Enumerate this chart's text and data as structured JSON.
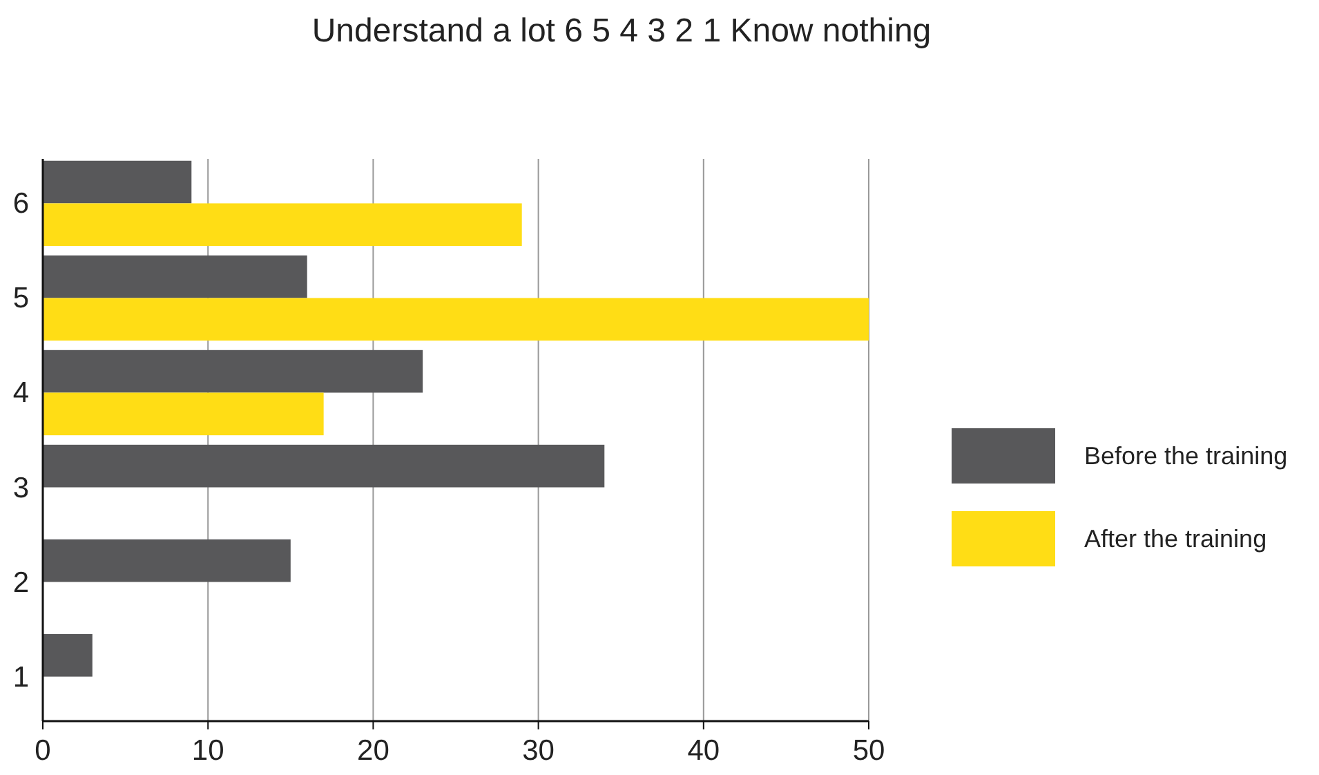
{
  "chart_data": {
    "type": "bar",
    "orientation": "horizontal",
    "title": "Understand a lot    6  5  4  3  2  1    Know nothing",
    "categories": [
      "6",
      "5",
      "4",
      "3",
      "2",
      "1"
    ],
    "series": [
      {
        "name": "Before the training",
        "color": "#58585a",
        "values": [
          9,
          16,
          23,
          34,
          15,
          3
        ]
      },
      {
        "name": "After the training",
        "color": "#ffdd15",
        "values": [
          29,
          50,
          17,
          0,
          0,
          0
        ]
      }
    ],
    "xlim": [
      0,
      50
    ],
    "xticks": [
      0,
      10,
      20,
      30,
      40,
      50
    ],
    "grid": "x",
    "legend": "right"
  }
}
